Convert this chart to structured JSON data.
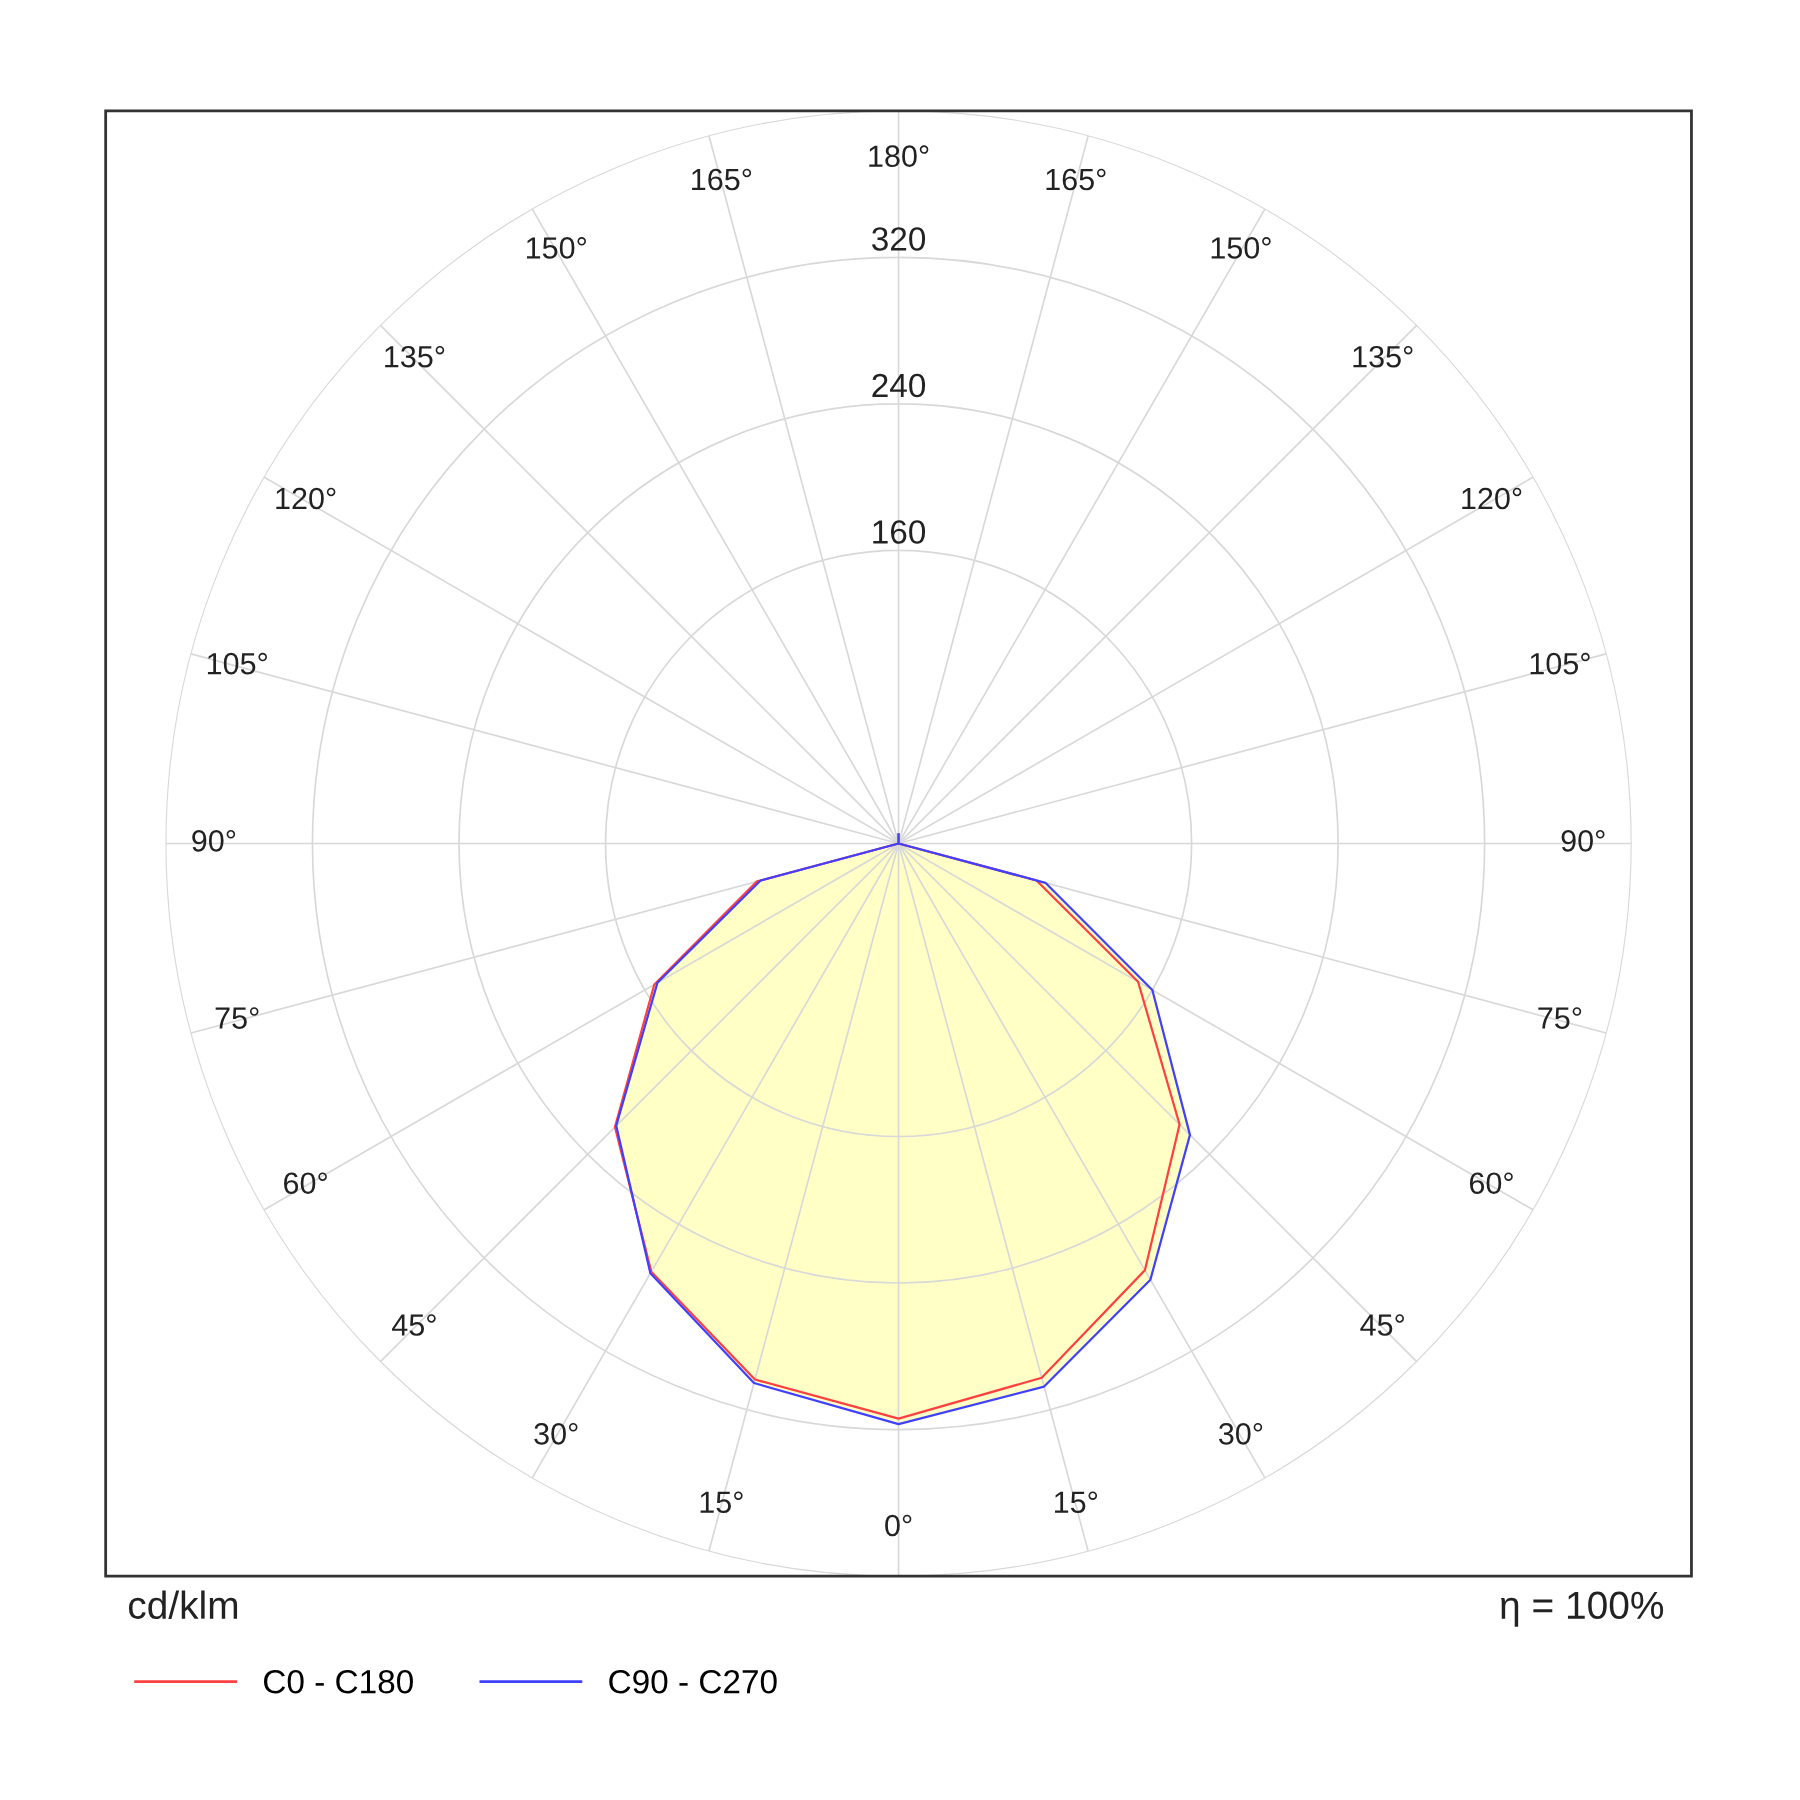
{
  "chart_data": {
    "type": "radar",
    "categories": [
      "180°",
      "165°",
      "150°",
      "135°",
      "120°",
      "105°",
      "90°",
      "75°",
      "60°",
      "45°",
      "30°",
      "15°",
      "0°",
      "15°",
      "30°",
      "45°",
      "60°",
      "75°",
      "90°",
      "105°",
      "120°",
      "135°",
      "150°",
      "165°"
    ],
    "series": [
      {
        "type": "area",
        "color": "#ffffc0",
        "values": [
          5,
          0,
          0,
          0,
          0,
          0,
          0,
          83,
          160,
          225,
          275,
          307,
          317,
          305,
          271,
          219,
          154,
          80,
          0,
          0,
          0,
          0,
          0,
          0
        ]
      },
      {
        "name": "C0 - C180",
        "color": "#ff4040",
        "values": [
          5,
          0,
          0,
          0,
          0,
          0,
          0,
          78,
          151,
          217,
          269,
          302,
          314,
          303,
          270,
          219,
          154,
          80,
          0,
          0,
          0,
          0,
          0,
          0
        ]
      },
      {
        "name": "C90 - C270",
        "color": "#4040ff",
        "values": [
          5,
          0,
          0,
          0,
          0,
          0,
          0,
          83,
          160,
          225,
          275,
          307,
          317,
          305,
          271,
          218,
          152,
          78,
          0,
          0,
          0,
          0,
          0,
          0
        ]
      }
    ],
    "ylim": [
      0,
      400
    ],
    "yticks": [
      160,
      240,
      320
    ],
    "ylabel": "cd/klm",
    "annotations": [
      "η = 100%"
    ],
    "grid": true,
    "legend": "bottom left",
    "line_style": "solid"
  }
}
